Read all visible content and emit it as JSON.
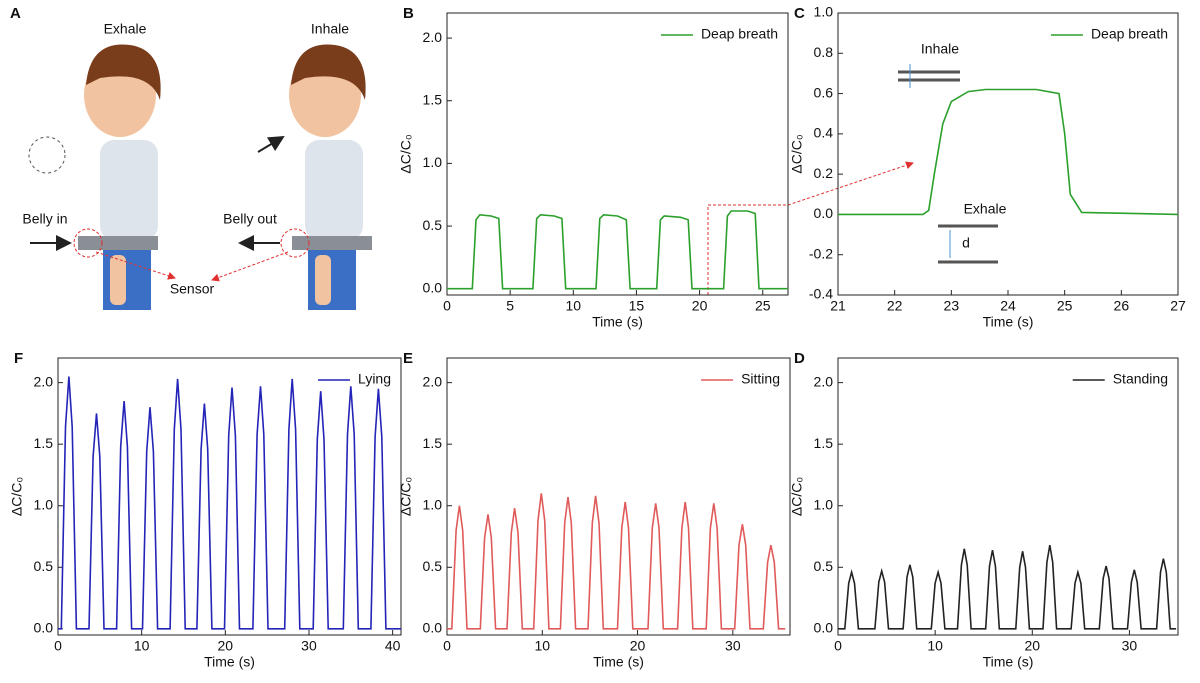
{
  "illustration": {
    "panel": "A",
    "exhale": "Exhale",
    "inhale": "Inhale",
    "belly_in": "Belly in",
    "belly_out": "Belly out",
    "sensor": "Sensor"
  },
  "chart_data": [
    {
      "panel": "B",
      "type": "line",
      "x_label": "Time (s)",
      "y_label": "ΔC/C₀",
      "legend": "upper right",
      "xlim": [
        0,
        27
      ],
      "xticks": [
        0,
        5,
        10,
        15,
        20,
        25
      ],
      "ylim": [
        -0.05,
        2.2
      ],
      "yticks": [
        {
          "value": 0,
          "label": "0.0"
        },
        0.5,
        {
          "value": 1,
          "label": "1.0"
        },
        1.5,
        {
          "value": 2,
          "label": "2.0"
        }
      ],
      "x": [
        0,
        2.0,
        2.3,
        2.6,
        3.5,
        4.1,
        4.4,
        6.8,
        7.1,
        7.4,
        8.5,
        9.1,
        9.4,
        11.8,
        12.1,
        12.4,
        13.5,
        14.2,
        14.5,
        16.6,
        16.9,
        17.2,
        18.5,
        19.1,
        19.4,
        21.9,
        22.2,
        22.5,
        23.8,
        24.4,
        24.7,
        27
      ],
      "series": [
        {
          "name": "Deap breath",
          "color": "#2ca02c",
          "values": [
            0,
            0,
            0.55,
            0.59,
            0.58,
            0.56,
            0,
            0,
            0.56,
            0.59,
            0.58,
            0.56,
            0,
            0,
            0.56,
            0.59,
            0.58,
            0.55,
            0,
            0,
            0.55,
            0.58,
            0.57,
            0.55,
            0,
            0,
            0.58,
            0.62,
            0.62,
            0.6,
            0,
            0
          ]
        }
      ]
    },
    {
      "panel": "C",
      "type": "line",
      "x_label": "Time (s)",
      "y_label": "ΔC/C₀",
      "legend": "upper right",
      "xlim": [
        21,
        27
      ],
      "xticks": [
        21,
        22,
        23,
        24,
        25,
        26,
        27
      ],
      "ylim": [
        -0.4,
        1.0
      ],
      "yticks": [
        -0.4,
        -0.2,
        {
          "value": 0,
          "label": "0.0"
        },
        0.2,
        0.4,
        0.6,
        0.8,
        {
          "value": 1,
          "label": "1.0"
        }
      ],
      "annotations": [
        "Inhale",
        "Exhale",
        "d"
      ],
      "x": [
        21,
        22.5,
        22.6,
        22.7,
        22.85,
        23.0,
        23.3,
        23.6,
        24.5,
        24.9,
        25.0,
        25.1,
        25.3,
        27
      ],
      "series": [
        {
          "name": "Deap breath",
          "color": "#2ca02c",
          "values": [
            0,
            0,
            0.02,
            0.2,
            0.45,
            0.56,
            0.61,
            0.62,
            0.62,
            0.6,
            0.4,
            0.1,
            0.01,
            0
          ]
        }
      ]
    },
    {
      "panel": "F",
      "type": "line",
      "x_label": "Time (s)",
      "y_label": "ΔC/C₀",
      "legend": "upper right",
      "xlim": [
        0,
        41
      ],
      "xticks": [
        0,
        10,
        20,
        30,
        40
      ],
      "ylim": [
        -0.05,
        2.2
      ],
      "yticks": [
        {
          "value": 0,
          "label": "0.0"
        },
        0.5,
        {
          "value": 1,
          "label": "1.0"
        },
        1.5,
        {
          "value": 2,
          "label": "2.0"
        }
      ],
      "x": [
        0,
        0.4,
        0.9,
        1.3,
        1.7,
        2.2,
        3.7,
        4.2,
        4.6,
        5.0,
        5.5,
        7.0,
        7.5,
        7.9,
        8.3,
        8.8,
        10.1,
        10.6,
        11.0,
        11.4,
        11.9,
        13.4,
        13.9,
        14.3,
        14.7,
        15.2,
        16.6,
        17.1,
        17.5,
        17.9,
        18.4,
        19.9,
        20.4,
        20.8,
        21.2,
        21.7,
        23.3,
        23.8,
        24.2,
        24.6,
        25.1,
        27.1,
        27.6,
        28.0,
        28.4,
        28.9,
        30.5,
        31.0,
        31.4,
        31.8,
        32.3,
        34.1,
        34.6,
        35.0,
        35.4,
        35.9,
        37.4,
        37.9,
        38.3,
        38.7,
        39.2,
        41
      ],
      "series": [
        {
          "name": "Lying",
          "color": "#2424b8",
          "values": [
            0,
            0,
            1.64,
            2.05,
            1.64,
            0,
            0,
            1.4,
            1.75,
            1.4,
            0,
            0,
            1.48,
            1.85,
            1.48,
            0,
            0,
            1.44,
            1.8,
            1.44,
            0,
            0,
            1.62,
            2.03,
            1.62,
            0,
            0,
            1.46,
            1.83,
            1.46,
            0,
            0,
            1.57,
            1.96,
            1.57,
            0,
            0,
            1.58,
            1.97,
            1.58,
            0,
            0,
            1.62,
            2.03,
            1.62,
            0,
            0,
            1.54,
            1.93,
            1.54,
            0,
            0,
            1.58,
            1.97,
            1.58,
            0,
            0,
            1.56,
            1.95,
            1.56,
            0,
            0
          ]
        }
      ]
    },
    {
      "panel": "E",
      "type": "line",
      "x_label": "Time (s)",
      "y_label": "ΔC/C₀",
      "legend": "upper right",
      "xlim": [
        0,
        36
      ],
      "xticks": [
        0,
        10,
        20,
        30
      ],
      "ylim": [
        -0.05,
        2.2
      ],
      "yticks": [
        {
          "value": 0,
          "label": "0.0"
        },
        0.5,
        {
          "value": 1,
          "label": "1.0"
        },
        1.5,
        {
          "value": 2,
          "label": "2.0"
        }
      ],
      "x": [
        0,
        0.5,
        0.95,
        1.3,
        1.65,
        2.1,
        3.5,
        3.95,
        4.3,
        4.65,
        5.1,
        6.3,
        6.75,
        7.1,
        7.45,
        7.9,
        9.1,
        9.55,
        9.9,
        10.25,
        10.7,
        11.9,
        12.35,
        12.7,
        13.05,
        13.5,
        14.8,
        15.25,
        15.6,
        15.95,
        16.4,
        17.9,
        18.35,
        18.7,
        19.05,
        19.5,
        21.1,
        21.55,
        21.9,
        22.25,
        22.7,
        24.2,
        24.65,
        25.0,
        25.35,
        25.8,
        27.2,
        27.65,
        28.0,
        28.35,
        28.8,
        30.2,
        30.65,
        31.0,
        31.35,
        31.8,
        33.2,
        33.65,
        34.0,
        34.35,
        34.8,
        35.5
      ],
      "series": [
        {
          "name": "Sitting",
          "color": "#e05a5a",
          "values": [
            0,
            0,
            0.8,
            1.0,
            0.8,
            0,
            0,
            0.74,
            0.93,
            0.74,
            0,
            0,
            0.78,
            0.98,
            0.78,
            0,
            0,
            0.88,
            1.1,
            0.88,
            0,
            0,
            0.86,
            1.07,
            0.86,
            0,
            0,
            0.86,
            1.08,
            0.86,
            0,
            0,
            0.82,
            1.03,
            0.82,
            0,
            0,
            0.82,
            1.02,
            0.82,
            0,
            0,
            0.82,
            1.03,
            0.82,
            0,
            0,
            0.82,
            1.02,
            0.82,
            0,
            0,
            0.68,
            0.85,
            0.68,
            0,
            0,
            0.54,
            0.68,
            0.54,
            0,
            0
          ]
        }
      ]
    },
    {
      "panel": "D",
      "type": "line",
      "x_label": "Time (s)",
      "y_label": "ΔC/C₀",
      "legend": "upper right",
      "xlim": [
        0,
        35
      ],
      "xticks": [
        0,
        10,
        20,
        30
      ],
      "ylim": [
        -0.05,
        2.2
      ],
      "yticks": [
        {
          "value": 0,
          "label": "0.0"
        },
        0.5,
        {
          "value": 1,
          "label": "1.0"
        },
        1.5,
        {
          "value": 2,
          "label": "2.0"
        }
      ],
      "x": [
        0,
        0.7,
        1.1,
        1.4,
        1.7,
        2.1,
        3.8,
        4.2,
        4.5,
        4.8,
        5.2,
        6.7,
        7.1,
        7.4,
        7.7,
        8.1,
        9.6,
        10.0,
        10.3,
        10.6,
        11.0,
        12.3,
        12.7,
        13.0,
        13.3,
        13.7,
        15.2,
        15.6,
        15.9,
        16.2,
        16.6,
        18.3,
        18.7,
        19.0,
        19.3,
        19.7,
        21.1,
        21.5,
        21.8,
        22.1,
        22.5,
        24.0,
        24.4,
        24.7,
        25.0,
        25.4,
        26.9,
        27.3,
        27.6,
        27.9,
        28.3,
        29.8,
        30.2,
        30.5,
        30.8,
        31.2,
        32.8,
        33.2,
        33.5,
        33.8,
        34.2,
        34.8
      ],
      "series": [
        {
          "name": "Standing",
          "color": "#222222",
          "values": [
            0,
            0,
            0.37,
            0.46,
            0.37,
            0,
            0,
            0.38,
            0.47,
            0.38,
            0,
            0,
            0.42,
            0.52,
            0.42,
            0,
            0,
            0.37,
            0.46,
            0.37,
            0,
            0,
            0.52,
            0.65,
            0.52,
            0,
            0,
            0.51,
            0.64,
            0.51,
            0,
            0,
            0.5,
            0.63,
            0.5,
            0,
            0,
            0.54,
            0.68,
            0.54,
            0,
            0,
            0.37,
            0.46,
            0.37,
            0,
            0,
            0.41,
            0.51,
            0.41,
            0,
            0,
            0.38,
            0.48,
            0.38,
            0,
            0,
            0.46,
            0.57,
            0.46,
            0,
            0
          ]
        }
      ]
    }
  ]
}
